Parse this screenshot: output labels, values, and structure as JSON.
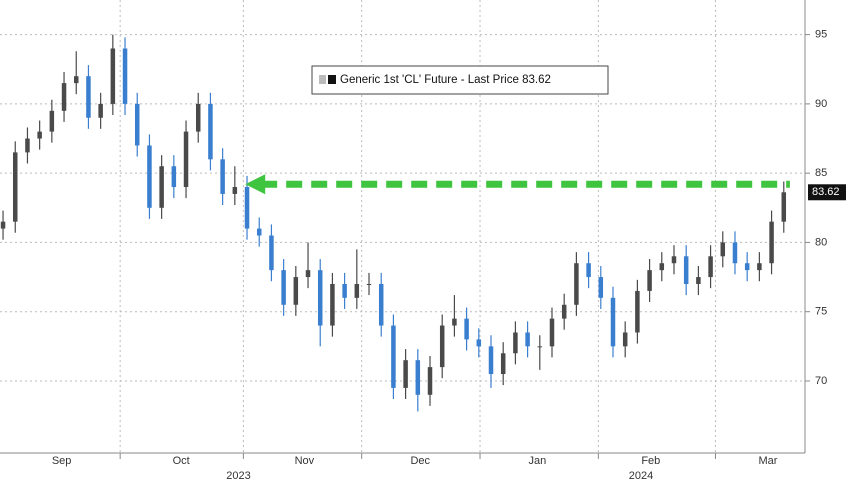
{
  "chart_data": {
    "type": "candlestick",
    "series_name": "Generic 1st 'CL' Future - Last Price",
    "up_color": "#4a4a4a",
    "down_color": "#3a7fcf",
    "open": [
      81,
      81.5,
      86.5,
      87.5,
      88,
      89.5,
      91.5,
      92,
      89,
      90,
      94,
      90,
      87,
      82.5,
      85.5,
      84,
      88,
      90,
      86,
      83.5,
      84,
      81,
      80.5,
      78,
      75.5,
      77.5,
      78,
      74,
      77,
      76,
      77,
      77,
      74,
      69.5,
      71.5,
      69,
      71,
      74,
      74.5,
      73,
      72.5,
      70.5,
      72,
      73.5,
      72.5,
      72.5,
      74.5,
      75.5,
      78.5,
      77.5,
      76,
      72.5,
      73.5,
      76.5,
      78,
      78.5,
      79,
      77,
      77.5,
      79,
      80,
      78.5,
      78,
      78.5,
      81.5
    ],
    "high": [
      82.3,
      87.3,
      88.3,
      88.8,
      90.3,
      92.3,
      93.8,
      92.8,
      90.8,
      95,
      94.8,
      90.8,
      87.8,
      86.3,
      86.3,
      88.8,
      90.8,
      90.8,
      86.8,
      85.5,
      84.8,
      81.8,
      81.3,
      78.8,
      78.3,
      80,
      78.8,
      77.8,
      77.8,
      79.5,
      77.8,
      77.8,
      74.8,
      72.3,
      72.3,
      71.8,
      74.8,
      76.2,
      75.3,
      73.8,
      73.3,
      72.8,
      74.3,
      74.3,
      73.3,
      75.3,
      76.3,
      79.3,
      79.3,
      78.3,
      76.8,
      74.3,
      77.3,
      78.8,
      79.3,
      79.8,
      79.8,
      78.3,
      79.8,
      80.8,
      80.8,
      79.3,
      79.3,
      82.3,
      84.4
    ],
    "low": [
      80.2,
      80.7,
      85.7,
      86.7,
      87.2,
      88.7,
      90.7,
      88.2,
      88.2,
      89.2,
      89.2,
      86.2,
      81.7,
      81.7,
      83.2,
      83.2,
      87.2,
      85.2,
      82.7,
      82.7,
      80.2,
      79.7,
      77.2,
      74.7,
      74.7,
      76.7,
      72.5,
      73.2,
      75.2,
      75.2,
      76.2,
      73.2,
      68.7,
      68.7,
      67.8,
      68.2,
      70.2,
      73.2,
      72.2,
      71.7,
      69.5,
      69.7,
      71.2,
      71.7,
      70.8,
      71.7,
      73.7,
      74.7,
      76.7,
      75.2,
      71.7,
      71.7,
      72.7,
      75.7,
      77.2,
      77.7,
      76.2,
      76.2,
      76.7,
      78.2,
      77.7,
      77.2,
      77.2,
      77.7,
      80.7
    ],
    "close": [
      81.5,
      86.5,
      87.5,
      88,
      89.5,
      91.5,
      92,
      89,
      90,
      94,
      90,
      87,
      82.5,
      85.5,
      84,
      88,
      90,
      86,
      83.5,
      84,
      81,
      80.5,
      78,
      75.5,
      77.5,
      78,
      74,
      77,
      76,
      77,
      77,
      74,
      69.5,
      71.5,
      69,
      71,
      74,
      74.5,
      73,
      72.5,
      70.5,
      72,
      73.5,
      72.5,
      72.5,
      74.5,
      75.5,
      78.5,
      77.5,
      76,
      72.5,
      73.5,
      76.5,
      78,
      78.5,
      79,
      77,
      77.5,
      79,
      80,
      78.5,
      78,
      78.5,
      81.5,
      83.62
    ],
    "xlim": [
      -0.25,
      65.74
    ],
    "xticks": [
      {
        "value": 4.8,
        "label": "Sep"
      },
      {
        "value": 14.6,
        "label": "Oct"
      },
      {
        "value": 24.7,
        "label": "Nov"
      },
      {
        "value": 34.2,
        "label": "Dec"
      },
      {
        "value": 43.8,
        "label": "Jan"
      },
      {
        "value": 53.1,
        "label": "Feb"
      },
      {
        "value": 62.7,
        "label": "Mar"
      }
    ],
    "year_ticks": [
      {
        "value": 19.3,
        "label": "2023"
      },
      {
        "value": 52.3,
        "label": "2024"
      }
    ],
    "xgrid": [
      9.6,
      19.7,
      29.4,
      39.1,
      48.8,
      58.4
    ],
    "ylim": [
      64.8,
      97.5
    ],
    "yticks": [
      70,
      75,
      80,
      85,
      90,
      95
    ],
    "grid": true,
    "annotation": {
      "type": "arrow",
      "y": 84.2,
      "x_start": 19.85,
      "x_end": 64.5,
      "color": "#3ec43e"
    }
  }
}
